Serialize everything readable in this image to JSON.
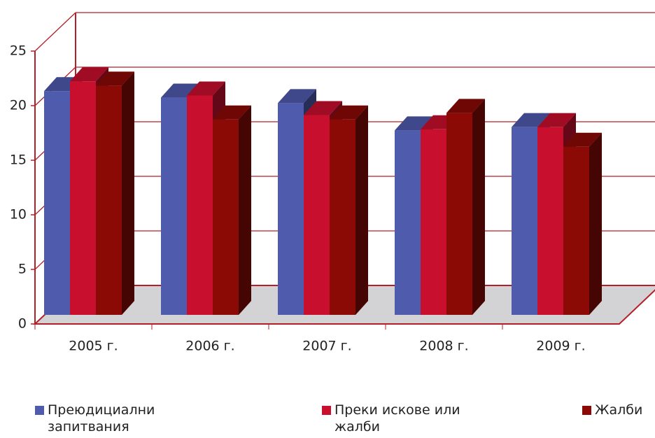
{
  "chart_data": {
    "type": "bar3d",
    "categories": [
      "2005 г.",
      "2006 г.",
      "2007 г.",
      "2008 г.",
      "2009 г."
    ],
    "series": [
      {
        "name": "Преюдициални запитвания",
        "color": "#4f5bad",
        "values": [
          20.5,
          19.9,
          19.4,
          16.9,
          17.2
        ]
      },
      {
        "name": "Преки искове или жалби",
        "color": "#c8102e",
        "values": [
          21.4,
          20.1,
          18.3,
          17.0,
          17.2
        ]
      },
      {
        "name": "Жалби",
        "color": "#8b0a06",
        "values": [
          21.0,
          17.9,
          17.9,
          18.5,
          15.4
        ]
      }
    ],
    "ylim": [
      0,
      25
    ],
    "yticks": [
      0,
      5,
      10,
      15,
      20,
      25
    ],
    "grid": true
  }
}
